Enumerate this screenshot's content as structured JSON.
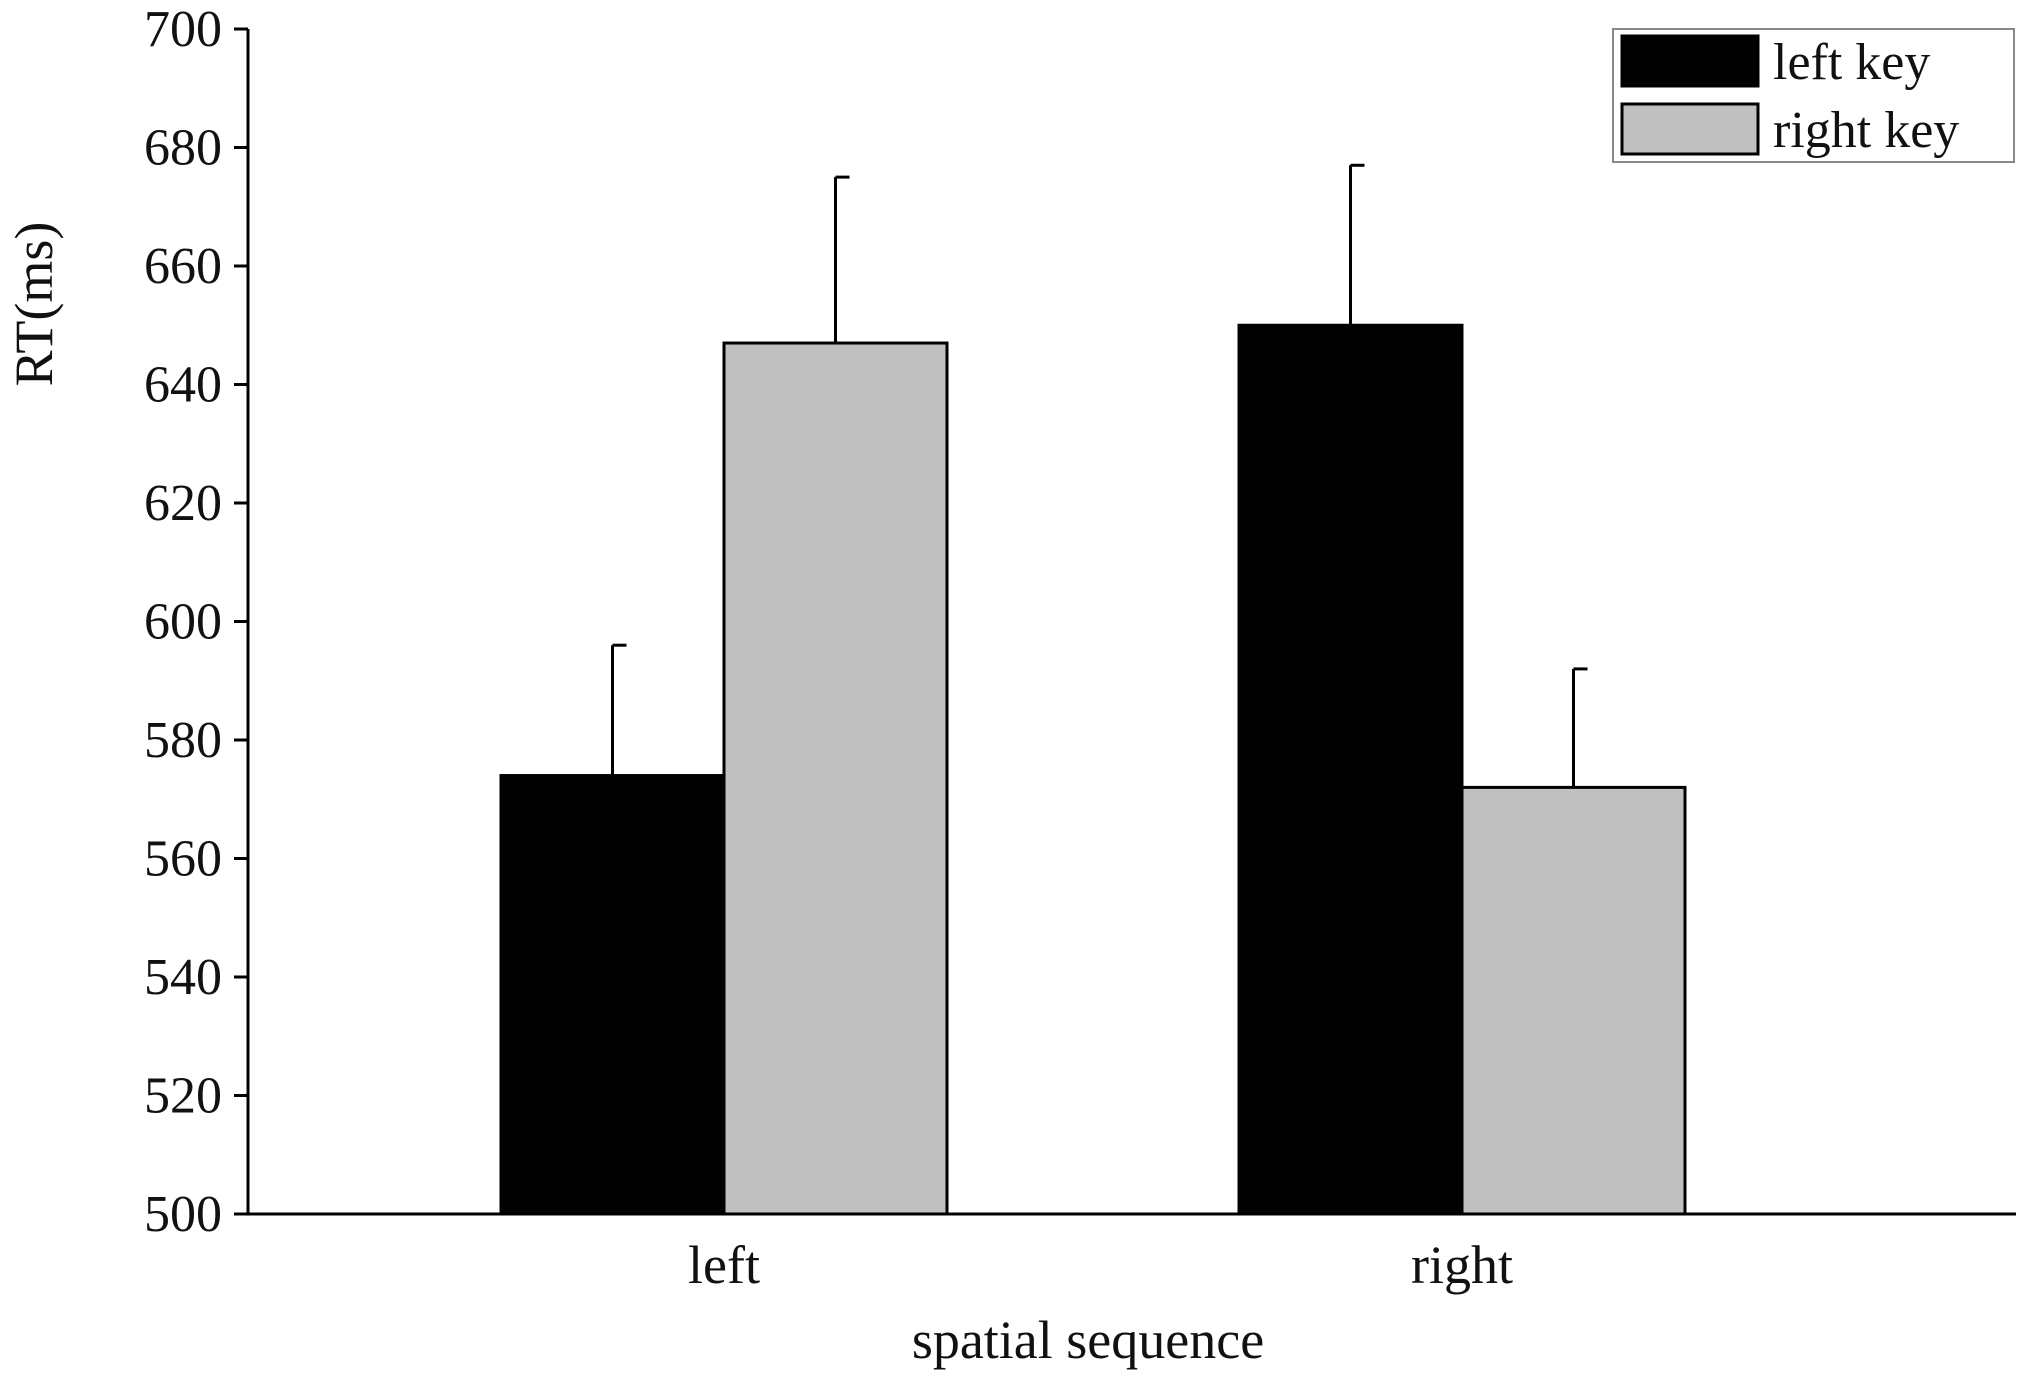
{
  "chart_data": {
    "type": "bar",
    "title": "",
    "xlabel": "spatial sequence",
    "ylabel": "RT(ms)",
    "ylim": [
      500,
      700
    ],
    "yticks": [
      500,
      520,
      540,
      560,
      580,
      600,
      620,
      640,
      660,
      680,
      700
    ],
    "categories": [
      "left",
      "right"
    ],
    "series": [
      {
        "name": "left key",
        "color": "#000000",
        "values": [
          574,
          650
        ],
        "error_plus": [
          22,
          27
        ]
      },
      {
        "name": "right key",
        "color": "#c0c0c0",
        "values": [
          647,
          572
        ],
        "error_plus": [
          28,
          20
        ]
      }
    ],
    "legend_position": "top-right",
    "grid": false
  }
}
